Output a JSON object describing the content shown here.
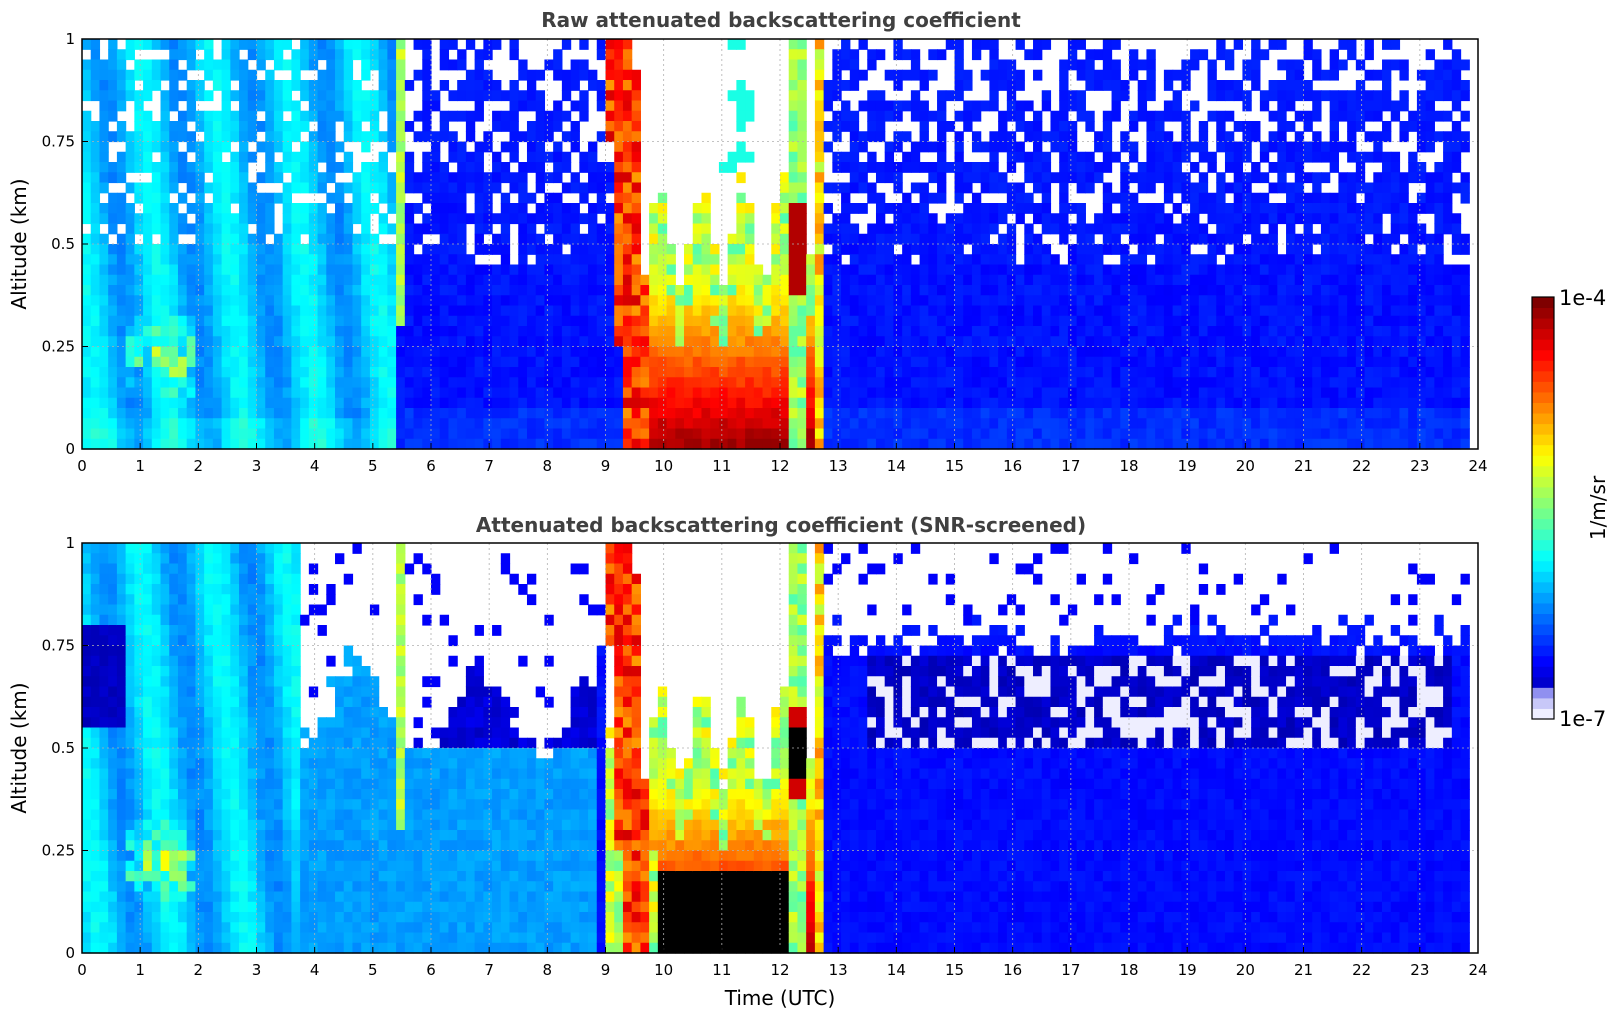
{
  "colors": {
    "jet_stops": [
      "#00007f",
      "#0000ff",
      "#007fff",
      "#00ffff",
      "#7fff7f",
      "#ffff00",
      "#ff7f00",
      "#ff0000",
      "#7f0000"
    ],
    "low_end": "#eeeeff",
    "saturated": "#000000",
    "title": "#404040"
  },
  "chart_data": [
    {
      "type": "heatmap",
      "title": "Raw attenuated backscattering coefficient",
      "ylabel": "Altitude (km)",
      "xlabel": "",
      "xlim": [
        0,
        24
      ],
      "ylim": [
        0,
        1
      ],
      "xticks": [
        "0",
        "1",
        "2",
        "3",
        "4",
        "5",
        "6",
        "7",
        "8",
        "9",
        "10",
        "11",
        "12",
        "13",
        "14",
        "15",
        "16",
        "17",
        "18",
        "19",
        "20",
        "21",
        "22",
        "23",
        "24"
      ],
      "yticks": [
        "0",
        "0.25",
        "0.5",
        "0.75",
        "1"
      ],
      "grid": true,
      "data_end_time": 23.8,
      "features": [
        {
          "time": [
            0,
            5.4
          ],
          "desc": "aerosol layer up to ~1 km, thinning above 0.5 km",
          "level": "low-moderate"
        },
        {
          "time": [
            0.7,
            2.0
          ],
          "altitude": [
            0.15,
            0.3
          ],
          "level": "moderate-high"
        },
        {
          "time": [
            5.35,
            5.5
          ],
          "altitude": [
            0.3,
            1
          ],
          "level": "moderate"
        },
        {
          "time": [
            9.0,
            12.5
          ],
          "altitude": [
            0,
            1
          ],
          "desc": "cloud / precipitation event",
          "level": "high"
        },
        {
          "time": [
            12.3,
            12.7
          ],
          "altitude": [
            0.4,
            0.6
          ],
          "level": "high"
        },
        {
          "time": [
            12.8,
            23.8
          ],
          "altitude": [
            0,
            0.45
          ],
          "level": "low"
        }
      ]
    },
    {
      "type": "heatmap",
      "title": "Attenuated backscattering coefficient (SNR-screened)",
      "ylabel": "Altitude (km)",
      "xlabel": "Time (UTC)",
      "xlim": [
        0,
        24
      ],
      "ylim": [
        0,
        1
      ],
      "xticks": [
        "0",
        "1",
        "2",
        "3",
        "4",
        "5",
        "6",
        "7",
        "8",
        "9",
        "10",
        "11",
        "12",
        "13",
        "14",
        "15",
        "16",
        "17",
        "18",
        "19",
        "20",
        "21",
        "22",
        "23",
        "24"
      ],
      "yticks": [
        "0",
        "0.25",
        "0.5",
        "0.75",
        "1"
      ],
      "grid": true,
      "data_end_time": 23.8,
      "features": [
        {
          "time": [
            0,
            3.7
          ],
          "altitude": [
            0,
            1
          ],
          "level": "low-moderate"
        },
        {
          "time": [
            3.7,
            8.9
          ],
          "altitude": [
            0,
            0.55
          ],
          "level": "low"
        },
        {
          "time": [
            9.0,
            12.5
          ],
          "altitude": [
            0,
            1
          ],
          "desc": "cloud / precipitation event",
          "level": "high"
        },
        {
          "time": [
            9.6,
            12.2
          ],
          "altitude": [
            0,
            0.2
          ],
          "desc": "saturated (black)",
          "level": "saturated"
        },
        {
          "time": [
            12.8,
            23.8
          ],
          "altitude": [
            0,
            0.75
          ],
          "level": "low"
        },
        {
          "time": [
            13.5,
            23.5
          ],
          "altitude": [
            0.5,
            0.7
          ],
          "desc": "near-minimum values",
          "level": "very-low"
        }
      ]
    }
  ],
  "colorbar": {
    "max_label": "1e-4",
    "min_label": "1e-7",
    "unit_label": "1/m/sr"
  }
}
